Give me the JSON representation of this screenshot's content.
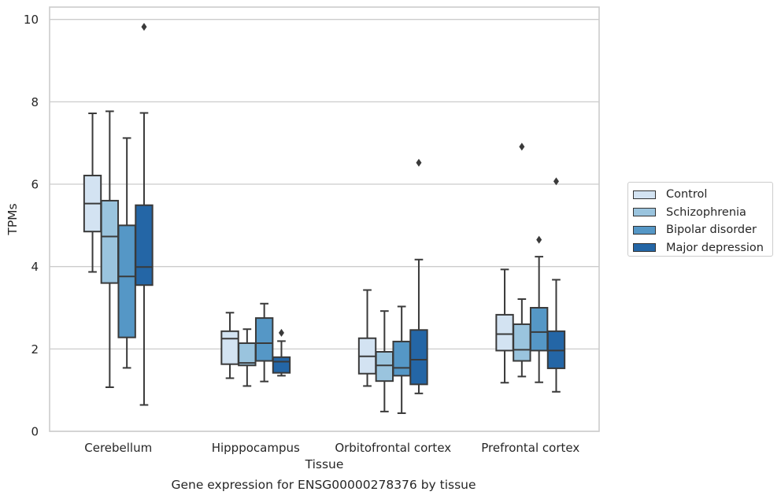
{
  "chart_data": {
    "type": "box",
    "caption": "Gene expression for ENSG00000278376 by tissue",
    "xlabel": "Tissue",
    "ylabel": "TPMs",
    "ylim": [
      0,
      10.3
    ],
    "yticks": [
      0,
      2,
      4,
      6,
      8,
      10
    ],
    "categories": [
      "Cerebellum",
      "Hipppocampus",
      "Orbitofrontal cortex",
      "Prefrontal cortex"
    ],
    "grid": "horizontal",
    "legend_position": "right",
    "series": [
      {
        "name": "Control",
        "color": "#d3e3f2",
        "boxes": [
          {
            "whisker_low": 3.87,
            "q1": 4.85,
            "median": 5.53,
            "q3": 6.21,
            "whisker_high": 7.72,
            "outliers": []
          },
          {
            "whisker_low": 1.29,
            "q1": 1.63,
            "median": 2.25,
            "q3": 2.43,
            "whisker_high": 2.88,
            "outliers": []
          },
          {
            "whisker_low": 1.1,
            "q1": 1.4,
            "median": 1.82,
            "q3": 2.26,
            "whisker_high": 3.43,
            "outliers": []
          },
          {
            "whisker_low": 1.18,
            "q1": 1.96,
            "median": 2.36,
            "q3": 2.83,
            "whisker_high": 3.93,
            "outliers": []
          }
        ]
      },
      {
        "name": "Schizophrenia",
        "color": "#9ac4de",
        "boxes": [
          {
            "whisker_low": 1.07,
            "q1": 3.6,
            "median": 4.73,
            "q3": 5.6,
            "whisker_high": 7.77,
            "outliers": []
          },
          {
            "whisker_low": 1.1,
            "q1": 1.6,
            "median": 1.66,
            "q3": 2.14,
            "whisker_high": 2.48,
            "outliers": []
          },
          {
            "whisker_low": 0.48,
            "q1": 1.22,
            "median": 1.6,
            "q3": 1.93,
            "whisker_high": 2.92,
            "outliers": []
          },
          {
            "whisker_low": 1.33,
            "q1": 1.71,
            "median": 1.98,
            "q3": 2.6,
            "whisker_high": 3.21,
            "outliers": [
              6.91
            ]
          }
        ]
      },
      {
        "name": "Bipolar disorder",
        "color": "#5597c6",
        "boxes": [
          {
            "whisker_low": 1.54,
            "q1": 2.28,
            "median": 3.76,
            "q3": 5.0,
            "whisker_high": 7.12,
            "outliers": []
          },
          {
            "whisker_low": 1.21,
            "q1": 1.71,
            "median": 2.14,
            "q3": 2.75,
            "whisker_high": 3.1,
            "outliers": []
          },
          {
            "whisker_low": 0.44,
            "q1": 1.35,
            "median": 1.54,
            "q3": 2.18,
            "whisker_high": 3.03,
            "outliers": []
          },
          {
            "whisker_low": 1.19,
            "q1": 1.96,
            "median": 2.41,
            "q3": 3.0,
            "whisker_high": 4.24,
            "outliers": [
              4.65
            ]
          }
        ]
      },
      {
        "name": "Major depression",
        "color": "#2466a6",
        "boxes": [
          {
            "whisker_low": 0.64,
            "q1": 3.55,
            "median": 3.99,
            "q3": 5.49,
            "whisker_high": 7.73,
            "outliers": [
              9.82
            ]
          },
          {
            "whisker_low": 1.35,
            "q1": 1.42,
            "median": 1.69,
            "q3": 1.8,
            "whisker_high": 2.19,
            "outliers": [
              2.39
            ]
          },
          {
            "whisker_low": 0.92,
            "q1": 1.14,
            "median": 1.74,
            "q3": 2.46,
            "whisker_high": 4.17,
            "outliers": [
              6.52
            ]
          },
          {
            "whisker_low": 0.96,
            "q1": 1.53,
            "median": 1.96,
            "q3": 2.43,
            "whisker_high": 3.68,
            "outliers": [
              6.07
            ]
          }
        ]
      }
    ]
  }
}
